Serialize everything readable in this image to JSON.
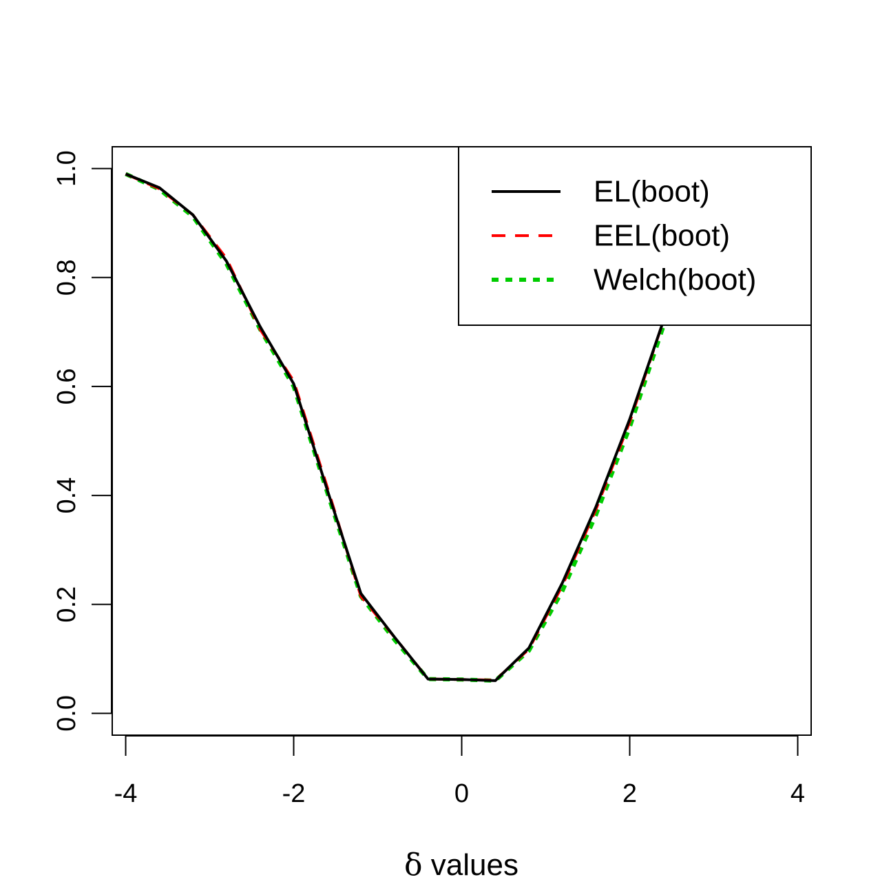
{
  "chart_data": {
    "type": "line",
    "title": "",
    "xlabel": "δ values",
    "xlabel_symbol": "δ",
    "xlabel_text": "values",
    "ylabel": "",
    "xlim": [
      -4.16,
      4.16
    ],
    "ylim": [
      -0.04,
      1.04
    ],
    "grid": false,
    "legend_position": "top-right",
    "x_ticks": [
      -4,
      -2,
      0,
      2,
      4
    ],
    "x_tick_labels": [
      "-4",
      "-2",
      "0",
      "2",
      "4"
    ],
    "y_ticks": [
      0.0,
      0.2,
      0.4,
      0.6,
      0.8,
      1.0
    ],
    "y_tick_labels": [
      "0.0",
      "0.2",
      "0.4",
      "0.6",
      "0.8",
      "1.0"
    ],
    "x": [
      -4.0,
      -3.6,
      -3.2,
      -2.8,
      -2.4,
      -2.0,
      -1.6,
      -1.2,
      -0.8,
      -0.4,
      0.0,
      0.4,
      0.8,
      1.2,
      1.6,
      2.0,
      2.4,
      2.8
    ],
    "series": [
      {
        "name": "EL(boot)",
        "color": "#000000",
        "dash": "solid",
        "values": [
          0.99,
          0.965,
          0.915,
          0.83,
          0.71,
          0.605,
          0.41,
          0.22,
          0.14,
          0.063,
          0.062,
          0.06,
          0.12,
          0.24,
          0.38,
          0.54,
          0.72,
          0.88
        ]
      },
      {
        "name": "EEL(boot)",
        "color": "#ff0000",
        "dash": "dashed",
        "values": [
          0.99,
          0.963,
          0.915,
          0.835,
          0.705,
          0.61,
          0.415,
          0.215,
          0.14,
          0.063,
          0.062,
          0.061,
          0.118,
          0.235,
          0.375,
          0.535,
          0.72,
          0.88
        ]
      },
      {
        "name": "Welch(boot)",
        "color": "#00cc00",
        "dash": "dotted",
        "values": [
          0.99,
          0.962,
          0.912,
          0.825,
          0.705,
          0.6,
          0.405,
          0.215,
          0.135,
          0.063,
          0.062,
          0.06,
          0.115,
          0.225,
          0.365,
          0.525,
          0.71,
          0.87
        ]
      }
    ]
  }
}
